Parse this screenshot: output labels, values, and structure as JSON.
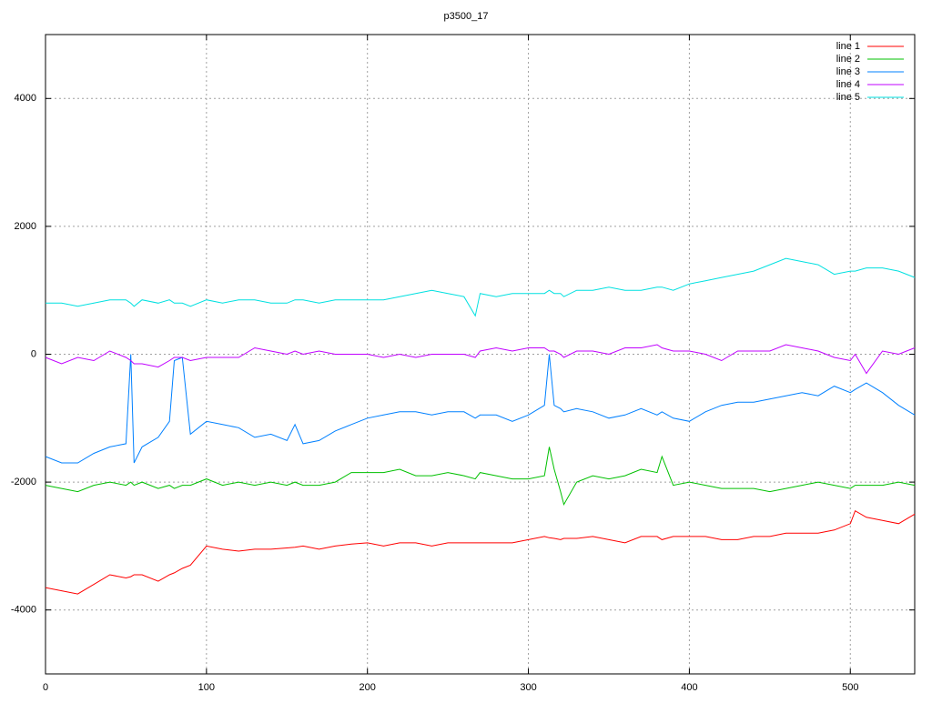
{
  "chart_data": {
    "type": "line",
    "title": "p3500_17",
    "x": [
      0,
      10,
      20,
      30,
      40,
      50,
      53,
      55,
      60,
      70,
      77,
      80,
      85,
      90,
      100,
      110,
      120,
      130,
      140,
      150,
      155,
      160,
      170,
      180,
      190,
      200,
      210,
      220,
      230,
      240,
      250,
      260,
      267,
      270,
      280,
      290,
      300,
      310,
      313,
      316,
      320,
      322,
      330,
      340,
      350,
      360,
      370,
      380,
      383,
      390,
      400,
      410,
      420,
      430,
      440,
      450,
      460,
      470,
      480,
      490,
      500,
      503,
      510,
      520,
      530,
      540
    ],
    "series": [
      {
        "name": "line 1",
        "color": "#ff0000",
        "values": [
          -3650,
          -3700,
          -3750,
          -3600,
          -3450,
          -3500,
          -3480,
          -3450,
          -3450,
          -3550,
          -3450,
          -3420,
          -3350,
          -3300,
          -3000,
          -3050,
          -3080,
          -3050,
          -3050,
          -3030,
          -3020,
          -3000,
          -3050,
          -3000,
          -2970,
          -2950,
          -3000,
          -2950,
          -2950,
          -3000,
          -2950,
          -2950,
          -2950,
          -2950,
          -2950,
          -2950,
          -2900,
          -2850,
          -2870,
          -2880,
          -2900,
          -2880,
          -2880,
          -2850,
          -2900,
          -2950,
          -2850,
          -2850,
          -2900,
          -2850,
          -2850,
          -2850,
          -2900,
          -2900,
          -2850,
          -2850,
          -2800,
          -2800,
          -2800,
          -2750,
          -2650,
          -2450,
          -2550,
          -2600,
          -2650,
          -2500
        ]
      },
      {
        "name": "line 2",
        "color": "#00c000",
        "values": [
          -2050,
          -2100,
          -2150,
          -2050,
          -2000,
          -2050,
          -2000,
          -2050,
          -2000,
          -2100,
          -2050,
          -2100,
          -2050,
          -2050,
          -1950,
          -2050,
          -2000,
          -2050,
          -2000,
          -2050,
          -2000,
          -2050,
          -2050,
          -2000,
          -1850,
          -1850,
          -1850,
          -1800,
          -1900,
          -1900,
          -1850,
          -1900,
          -1950,
          -1850,
          -1900,
          -1950,
          -1950,
          -1900,
          -1450,
          -1800,
          -2150,
          -2350,
          -2000,
          -1900,
          -1950,
          -1900,
          -1800,
          -1850,
          -1600,
          -2050,
          -2000,
          -2050,
          -2100,
          -2100,
          -2100,
          -2150,
          -2100,
          -2050,
          -2000,
          -2050,
          -2100,
          -2050,
          -2050,
          -2050,
          -2000,
          -2050
        ]
      },
      {
        "name": "line 3",
        "color": "#0080ff",
        "values": [
          -1600,
          -1700,
          -1700,
          -1550,
          -1450,
          -1400,
          0,
          -1700,
          -1450,
          -1300,
          -1050,
          -100,
          -50,
          -1250,
          -1050,
          -1100,
          -1150,
          -1300,
          -1250,
          -1350,
          -1100,
          -1400,
          -1350,
          -1200,
          -1100,
          -1000,
          -950,
          -900,
          -900,
          -950,
          -900,
          -900,
          -1000,
          -950,
          -950,
          -1050,
          -950,
          -800,
          0,
          -800,
          -850,
          -900,
          -850,
          -900,
          -1000,
          -950,
          -850,
          -950,
          -900,
          -1000,
          -1050,
          -900,
          -800,
          -750,
          -750,
          -700,
          -650,
          -600,
          -650,
          -500,
          -600,
          -550,
          -450,
          -600,
          -800,
          -950
        ]
      },
      {
        "name": "line 4",
        "color": "#c000ff",
        "values": [
          -50,
          -150,
          -50,
          -100,
          50,
          -50,
          -100,
          -150,
          -150,
          -200,
          -100,
          -50,
          -50,
          -100,
          -50,
          -50,
          -50,
          100,
          50,
          0,
          50,
          0,
          50,
          0,
          0,
          0,
          -50,
          0,
          -50,
          0,
          0,
          0,
          -50,
          50,
          100,
          50,
          100,
          100,
          50,
          50,
          0,
          -50,
          50,
          50,
          0,
          100,
          100,
          150,
          100,
          50,
          50,
          0,
          -100,
          50,
          50,
          50,
          150,
          100,
          50,
          -50,
          -100,
          0,
          -300,
          50,
          0,
          100
        ]
      },
      {
        "name": "line 5",
        "color": "#00e0e0",
        "values": [
          800,
          800,
          750,
          800,
          850,
          850,
          800,
          750,
          850,
          800,
          850,
          800,
          800,
          750,
          850,
          800,
          850,
          850,
          800,
          800,
          850,
          850,
          800,
          850,
          850,
          850,
          850,
          900,
          950,
          1000,
          950,
          900,
          600,
          950,
          900,
          950,
          950,
          950,
          1000,
          950,
          950,
          900,
          1000,
          1000,
          1050,
          1000,
          1000,
          1050,
          1050,
          1000,
          1100,
          1150,
          1200,
          1250,
          1300,
          1400,
          1500,
          1450,
          1400,
          1250,
          1300,
          1300,
          1350,
          1350,
          1300,
          1200
        ]
      }
    ],
    "xlim": [
      0,
      540
    ],
    "ylim": [
      -5000,
      5000
    ],
    "xticks": [
      0,
      100,
      200,
      300,
      400,
      500
    ],
    "yticks": [
      -4000,
      -2000,
      0,
      2000,
      4000
    ],
    "grid": true,
    "legend": "top-right"
  }
}
